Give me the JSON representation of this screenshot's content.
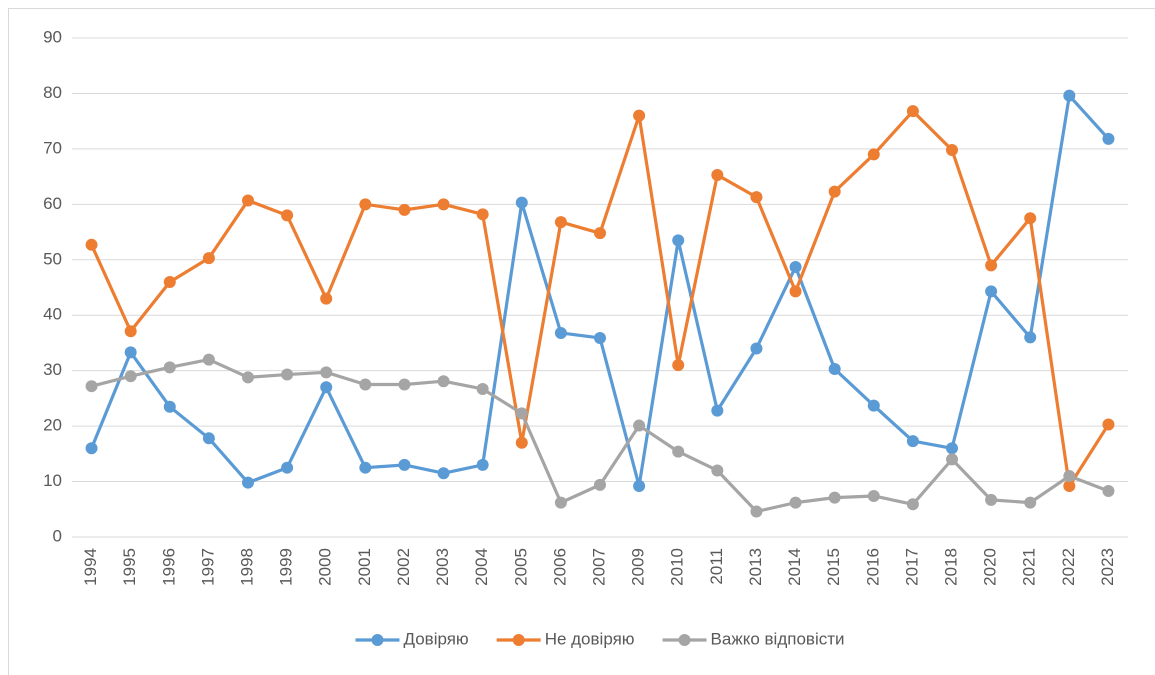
{
  "chart_data": {
    "type": "line",
    "categories": [
      "1994",
      "1995",
      "1996",
      "1997",
      "1998",
      "1999",
      "2000",
      "2001",
      "2002",
      "2003",
      "2004",
      "2005",
      "2006",
      "2007",
      "2009",
      "2010",
      "2011",
      "2013",
      "2014",
      "2015",
      "2016",
      "2017",
      "2018",
      "2020",
      "2021",
      "2022",
      "2023"
    ],
    "series": [
      {
        "name": "Довіряю",
        "color": "#5b9bd5",
        "values": [
          16,
          33.3,
          23.5,
          17.8,
          9.8,
          12.5,
          27,
          12.5,
          13,
          11.5,
          13,
          60.3,
          36.8,
          35.9,
          9.2,
          53.5,
          22.8,
          34,
          48.7,
          30.3,
          23.7,
          17.3,
          16,
          44.3,
          36,
          79.6,
          71.8
        ]
      },
      {
        "name": "Не довіряю",
        "color": "#ed7d31",
        "values": [
          52.7,
          37.1,
          46,
          50.3,
          60.7,
          58,
          43,
          60,
          59,
          60,
          58.2,
          17,
          56.8,
          54.8,
          76,
          31,
          65.3,
          61.3,
          44.3,
          62.3,
          69,
          76.8,
          69.8,
          49,
          57.5,
          9.2,
          20.3
        ]
      },
      {
        "name": "Важко відповісти",
        "color": "#a5a5a5",
        "values": [
          27.2,
          29,
          30.6,
          32,
          28.8,
          29.3,
          29.7,
          27.5,
          27.5,
          28.1,
          26.7,
          22.3,
          6.2,
          9.4,
          20.1,
          15.4,
          12,
          4.6,
          6.2,
          7.1,
          7.4,
          5.9,
          14,
          6.7,
          6.2,
          11,
          8.3
        ]
      }
    ],
    "ylim": [
      0,
      90
    ],
    "yticks": [
      0,
      10,
      20,
      30,
      40,
      50,
      60,
      70,
      80,
      90
    ],
    "grid": true,
    "legend": "bottom"
  }
}
